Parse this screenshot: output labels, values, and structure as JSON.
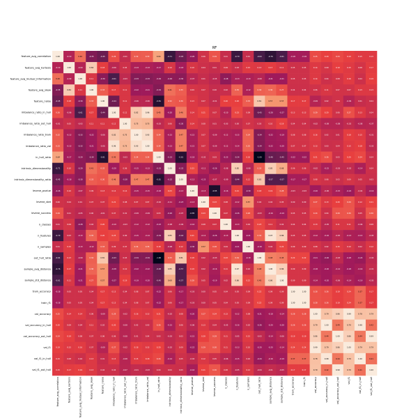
{
  "chart_data": {
    "type": "heatmap",
    "title": "RF",
    "labels": [
      "feature_avg_correlation",
      "feature_avg_kurtosis",
      "feature_avg_mutual_information",
      "feature_avg_skew",
      "feature_noise",
      "imbalance_ratio_in_hull",
      "imbalance_ratio_out_hull",
      "imbalance_ratio_train",
      "imbalance_ratio_val",
      "in_hull_ratio",
      "intrinsic_dimensionality",
      "intrinsic_dimensionality_ratio",
      "levene_pvalue",
      "levene_stat",
      "levene_success",
      "n_classes",
      "n_features",
      "n_samples",
      "out_hull_ratio",
      "sample_avg_distance",
      "sample_std_distance",
      "train_accuracy",
      "train_f1",
      "val_accuracy",
      "val_accuracy_in_hull",
      "val_accuracy_out_hull",
      "val_f1",
      "val_f1_in_hull",
      "val_f1_out_hull"
    ],
    "values": [
      [
        1.0,
        -0.1,
        0.4,
        -0.35,
        -0.45,
        0.26,
        -0.01,
        0.32,
        0.33,
        0.64,
        -0.71,
        -0.45,
        -0.26,
        0.06,
        0.29,
        0.01,
        -0.7,
        0.01,
        -0.64,
        -0.76,
        -0.61,
        -0.18,
        -0.18,
        0.25,
        0.2,
        0.24,
        0.19,
        0.15,
        0.15
      ],
      [
        -0.1,
        1.0,
        -0.09,
        0.84,
        0.18,
        -0.06,
        0.05,
        -0.13,
        -0.13,
        -0.17,
        0.1,
        -0.18,
        0.1,
        0.04,
        0.01,
        0.09,
        0.03,
        0.15,
        0.13,
        0.17,
        0.11,
        0.05,
        0.05,
        0.14,
        0.09,
        0.19,
        0.15,
        0.08,
        0.17
      ],
      [
        0.4,
        -0.09,
        1.0,
        0.11,
        -0.3,
        -0.61,
        -0.03,
        -0.33,
        -0.33,
        -0.29,
        -0.29,
        -0.3,
        -0.07,
        0.01,
        -0.05,
        -0.28,
        -0.13,
        -0.13,
        -0.09,
        -0.21,
        -0.21,
        0.05,
        0.05,
        0.14,
        0.04,
        0.08,
        0.16,
        0.04,
        0.19
      ],
      [
        -0.35,
        0.84,
        0.11,
        1.0,
        0.33,
        0.17,
        0.11,
        -0.22,
        -0.21,
        -0.34,
        0.41,
        0.33,
        0.09,
        0.07,
        0.0,
        0.02,
        0.35,
        -0.12,
        0.34,
        0.36,
        0.27,
        0.04,
        0.04,
        0.06,
        0.11,
        0.07,
        0.07,
        0.13,
        0.13
      ],
      [
        -0.45,
        0.18,
        -0.3,
        0.33,
        1.0,
        -0.44,
        0.11,
        -0.06,
        -0.06,
        -0.81,
        0.32,
        0.3,
        0.13,
        0.07,
        -0.01,
        0.2,
        0.2,
        0.33,
        0.81,
        0.57,
        0.57,
        0.17,
        0.17,
        -0.09,
        0.02,
        0.06,
        -0.09,
        0.01,
        0.04
      ],
      [
        0.26,
        -0.06,
        -0.61,
        0.17,
        -0.44,
        1.0,
        0.12,
        0.82,
        0.96,
        0.45,
        -0.2,
        0.46,
        0.14,
        0.21,
        0.07,
        -0.1,
        0.23,
        0.09,
        -0.43,
        -0.28,
        -0.27,
        0.13,
        0.13,
        0.29,
        0.2,
        0.06,
        0.27,
        0.13,
        0.04
      ],
      [
        -0.01,
        0.05,
        -0.03,
        0.11,
        0.11,
        0.12,
        1.0,
        0.75,
        0.73,
        -0.03,
        0.06,
        -0.3,
        0.14,
        0.08,
        0.01,
        -0.03,
        0.0,
        0.07,
        0.03,
        0.1,
        0.19,
        0.04,
        0.04,
        -0.02,
        -0.08,
        -0.08,
        -0.02,
        -0.08,
        -0.07
      ],
      [
        0.32,
        -0.13,
        -0.33,
        -0.22,
        -0.06,
        0.82,
        0.75,
        1.0,
        0.93,
        0.34,
        -0.15,
        0.47,
        -0.15,
        0.07,
        -0.09,
        -0.12,
        -0.15,
        0.34,
        -0.34,
        -0.22,
        -0.19,
        0.08,
        0.08,
        0.16,
        0.02,
        0.01,
        0.18,
        0.15,
        -0.01
      ],
      [
        0.33,
        -0.13,
        -0.33,
        -0.21,
        -0.06,
        0.96,
        0.73,
        0.93,
        1.0,
        0.34,
        -0.13,
        0.47,
        -0.15,
        0.07,
        -0.09,
        -0.12,
        -0.14,
        0.35,
        -0.34,
        -0.22,
        -0.2,
        0.07,
        0.07,
        0.13,
        0.03,
        0.04,
        0.15,
        0.18,
        -0.03
      ],
      [
        0.64,
        -0.17,
        -0.29,
        -0.34,
        -0.81,
        0.45,
        -0.03,
        0.34,
        0.34,
        1.0,
        -0.33,
        -0.81,
        -0.18,
        -0.02,
        0.03,
        -0.23,
        -0.34,
        0.18,
        -1.0,
        -0.48,
        -0.45,
        -0.22,
        -0.22,
        0.21,
        0.26,
        0.03,
        0.2,
        0.24,
        0.04
      ],
      [
        -0.71,
        0.1,
        -0.29,
        0.41,
        0.32,
        -0.2,
        0.06,
        -0.15,
        -0.13,
        -0.33,
        1.0,
        -0.32,
        0.23,
        -0.11,
        -0.26,
        -0.08,
        0.85,
        -0.08,
        0.33,
        0.85,
        0.68,
        0.06,
        0.06,
        -0.02,
        -0.15,
        -0.03,
        -0.02,
        -0.14,
        0.04
      ],
      [
        -0.45,
        -0.18,
        -0.3,
        0.33,
        0.3,
        0.46,
        -0.3,
        0.47,
        0.47,
        -0.81,
        -0.32,
        1.0,
        -0.13,
        -0.23,
        -0.07,
        -0.09,
        -0.44,
        0.12,
        0.81,
        -0.57,
        -0.57,
        -0.17,
        -0.17,
        0.08,
        0.06,
        0.03,
        0.09,
        0.05,
        0.03
      ],
      [
        -0.26,
        0.1,
        -0.07,
        0.09,
        0.13,
        0.14,
        0.14,
        -0.15,
        -0.15,
        -0.18,
        0.23,
        -0.13,
        1.0,
        -0.13,
        -0.85,
        -0.16,
        0.21,
        -0.3,
        0.18,
        0.19,
        0.28,
        -0.03,
        -0.03,
        -0.2,
        -0.06,
        -0.15,
        -0.22,
        -0.02,
        -0.16
      ],
      [
        0.06,
        0.04,
        0.01,
        0.07,
        0.07,
        0.21,
        0.08,
        0.07,
        0.07,
        -0.02,
        -0.11,
        -0.23,
        -0.13,
        1.0,
        0.23,
        0.08,
        -0.12,
        0.57,
        0.02,
        0.02,
        0.05,
        0.0,
        0.0,
        0.27,
        0.13,
        0.2,
        0.29,
        0.12,
        0.21
      ],
      [
        0.29,
        0.01,
        -0.05,
        0.0,
        -0.01,
        0.07,
        0.01,
        -0.09,
        -0.09,
        0.03,
        -0.26,
        -0.07,
        -0.85,
        0.23,
        1.0,
        0.07,
        -0.26,
        0.28,
        -0.03,
        -0.16,
        -0.19,
        0.05,
        0.05,
        0.24,
        0.04,
        0.29,
        0.3,
        0.05,
        0.3
      ],
      [
        0.01,
        0.09,
        -0.28,
        0.02,
        0.2,
        -0.1,
        -0.03,
        -0.12,
        -0.12,
        -0.23,
        -0.08,
        -0.09,
        -0.16,
        0.08,
        0.07,
        1.0,
        -0.13,
        0.04,
        0.23,
        0.11,
        0.02,
        0.04,
        0.04,
        0.13,
        -0.05,
        0.11,
        0.11,
        -0.06,
        0.08
      ],
      [
        -0.7,
        0.03,
        -0.13,
        0.35,
        0.2,
        0.23,
        0.0,
        -0.15,
        -0.14,
        -0.34,
        0.85,
        -0.44,
        0.21,
        -0.12,
        -0.26,
        -0.13,
        1.0,
        -0.21,
        0.34,
        0.97,
        0.86,
        0.05,
        0.05,
        -0.12,
        -0.16,
        -0.05,
        -0.13,
        -0.15,
        -0.05
      ],
      [
        0.01,
        0.15,
        -0.13,
        -0.12,
        0.33,
        0.09,
        0.07,
        0.34,
        0.35,
        0.18,
        -0.08,
        0.12,
        -0.3,
        0.57,
        0.28,
        0.04,
        -0.21,
        1.0,
        -0.18,
        0.02,
        0.22,
        0.09,
        0.09,
        0.08,
        0.02,
        0.15,
        0.1,
        0.02,
        0.12
      ],
      [
        -0.64,
        0.13,
        -0.09,
        0.34,
        0.81,
        -0.43,
        0.03,
        -0.34,
        -0.34,
        -1.0,
        0.33,
        0.81,
        0.18,
        0.02,
        -0.03,
        0.23,
        0.34,
        -0.18,
        1.0,
        0.48,
        0.45,
        0.22,
        0.22,
        -0.21,
        -0.26,
        -0.03,
        -0.2,
        -0.24,
        -0.04
      ],
      [
        -0.76,
        0.17,
        -0.21,
        0.36,
        0.57,
        -0.28,
        0.1,
        -0.22,
        -0.22,
        -0.48,
        0.85,
        -0.57,
        0.19,
        0.02,
        -0.16,
        0.11,
        0.97,
        0.02,
        0.48,
        1.0,
        0.86,
        0.09,
        0.09,
        -0.18,
        -0.2,
        -0.14,
        -0.2,
        -0.16,
        -0.01
      ],
      [
        -0.61,
        0.11,
        -0.21,
        0.27,
        0.57,
        -0.27,
        0.19,
        -0.19,
        -0.2,
        -0.45,
        0.68,
        -0.57,
        0.28,
        0.05,
        -0.19,
        0.02,
        0.86,
        0.22,
        0.45,
        0.86,
        1.0,
        0.09,
        0.09,
        -0.14,
        -0.2,
        -0.06,
        -0.14,
        -0.19,
        -0.05
      ],
      [
        -0.18,
        0.05,
        0.05,
        0.04,
        0.17,
        0.13,
        0.04,
        0.08,
        0.07,
        -0.22,
        0.06,
        -0.17,
        -0.03,
        0.0,
        0.05,
        0.04,
        0.05,
        0.09,
        0.22,
        0.09,
        0.09,
        1.0,
        1.0,
        0.28,
        0.26,
        0.19,
        0.24,
        0.37,
        0.17
      ],
      [
        -0.18,
        0.05,
        0.05,
        0.04,
        0.17,
        0.13,
        0.04,
        0.08,
        0.07,
        -0.22,
        0.06,
        -0.17,
        -0.03,
        0.0,
        0.05,
        0.04,
        0.05,
        0.09,
        0.22,
        0.09,
        0.09,
        1.0,
        1.0,
        0.28,
        0.26,
        0.19,
        0.24,
        0.37,
        0.17
      ],
      [
        0.25,
        0.14,
        0.14,
        0.06,
        -0.09,
        0.29,
        -0.02,
        0.16,
        0.13,
        0.21,
        -0.02,
        0.08,
        -0.2,
        0.27,
        0.24,
        0.13,
        -0.12,
        0.08,
        -0.21,
        -0.18,
        -0.14,
        0.28,
        0.28,
        1.0,
        0.79,
        0.86,
        0.99,
        0.78,
        0.79
      ],
      [
        0.2,
        0.09,
        0.04,
        0.11,
        0.02,
        0.2,
        -0.08,
        0.02,
        0.03,
        0.26,
        -0.15,
        0.06,
        -0.06,
        0.13,
        0.04,
        -0.05,
        -0.16,
        0.02,
        -0.26,
        -0.2,
        -0.2,
        0.26,
        0.26,
        0.79,
        1.0,
        0.44,
        0.79,
        0.98,
        0.42
      ],
      [
        0.24,
        0.19,
        0.08,
        0.07,
        0.06,
        0.06,
        -0.08,
        0.01,
        0.04,
        0.03,
        -0.03,
        0.03,
        -0.15,
        0.2,
        0.29,
        0.11,
        -0.05,
        0.15,
        -0.03,
        -0.14,
        -0.06,
        0.19,
        0.19,
        0.86,
        0.44,
        1.0,
        0.86,
        0.44,
        0.99
      ],
      [
        0.19,
        0.15,
        0.16,
        0.07,
        -0.09,
        0.27,
        -0.02,
        0.18,
        0.15,
        0.2,
        -0.02,
        0.09,
        -0.22,
        0.29,
        0.3,
        0.11,
        -0.13,
        0.1,
        -0.2,
        -0.2,
        -0.14,
        0.24,
        0.24,
        0.99,
        0.79,
        0.86,
        1.0,
        0.79,
        0.79
      ],
      [
        0.15,
        0.08,
        0.04,
        0.13,
        0.01,
        0.13,
        -0.08,
        0.15,
        0.18,
        0.24,
        -0.14,
        0.05,
        -0.02,
        0.12,
        0.05,
        -0.06,
        -0.15,
        0.02,
        -0.24,
        -0.16,
        -0.19,
        0.37,
        0.37,
        0.78,
        0.98,
        0.44,
        0.79,
        1.0,
        0.41
      ],
      [
        0.15,
        0.17,
        0.19,
        0.13,
        0.04,
        0.04,
        -0.07,
        -0.01,
        -0.03,
        0.04,
        0.04,
        0.03,
        -0.16,
        0.21,
        0.3,
        0.08,
        -0.05,
        0.12,
        -0.04,
        -0.01,
        -0.05,
        0.17,
        0.17,
        0.79,
        0.42,
        0.99,
        0.79,
        0.41,
        1.0
      ]
    ],
    "vmin": -1.0,
    "vmax": 1.0,
    "value_format": "0.00",
    "colormap": [
      "#03051a",
      "#4c1d4b",
      "#a11a5b",
      "#e83f3f",
      "#f69c73",
      "#faebdd"
    ],
    "legend": "none"
  }
}
